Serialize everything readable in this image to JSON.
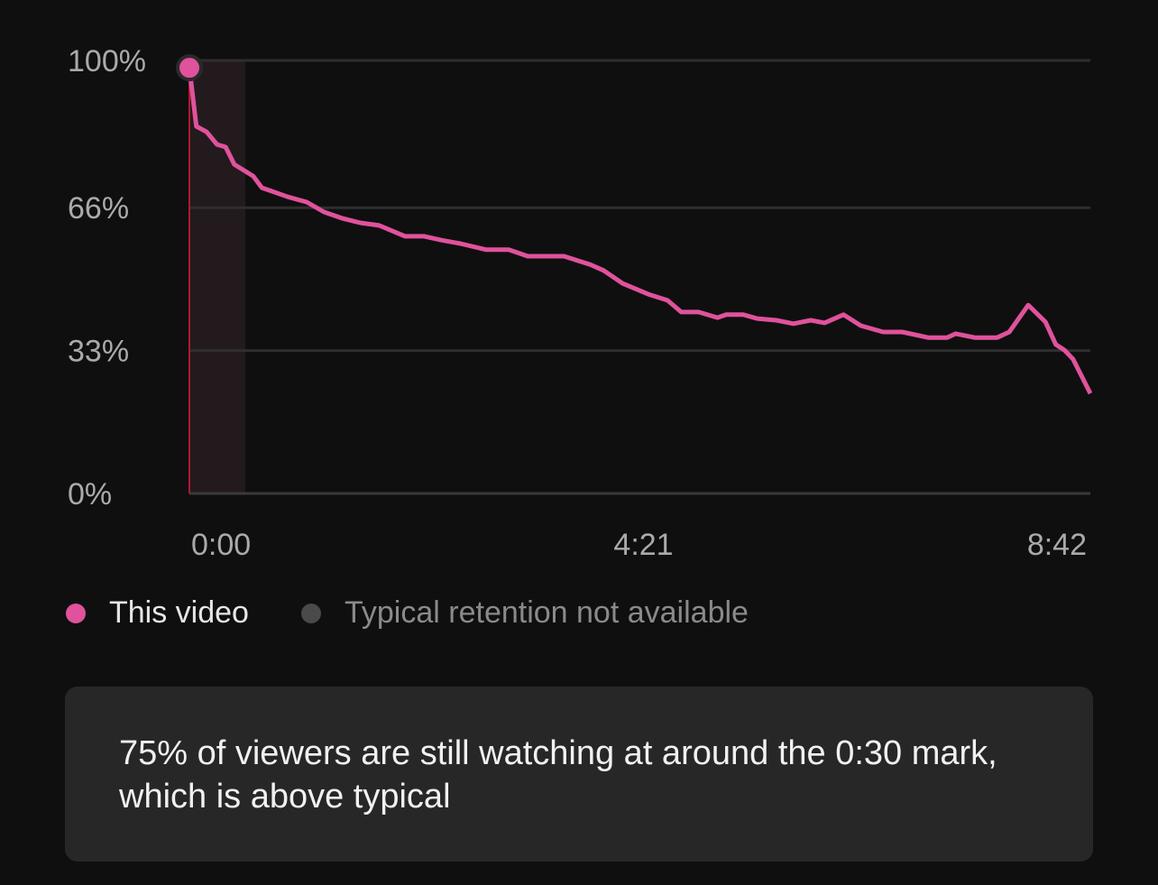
{
  "chart_data": {
    "type": "line",
    "x": [
      0,
      4,
      10,
      16,
      21,
      26,
      37,
      42,
      57,
      68,
      78,
      89,
      99,
      110,
      125,
      136,
      146,
      157,
      172,
      185,
      196,
      217,
      232,
      240,
      251,
      266,
      277,
      285,
      295,
      306,
      311,
      321,
      329,
      340,
      350,
      360,
      368,
      379,
      389,
      402,
      413,
      428,
      439,
      444,
      455,
      468,
      475,
      486,
      496,
      502,
      507,
      512,
      522
    ],
    "series": [
      {
        "name": "This video",
        "color": "#e0529c",
        "values": [
          98.3,
          84.8,
          83.5,
          80.6,
          80,
          76,
          73.3,
          70.6,
          68.5,
          67.3,
          65,
          63.5,
          62.5,
          61.9,
          59.4,
          59.4,
          58.5,
          57.7,
          56.3,
          56.3,
          54.8,
          54.8,
          52.9,
          51.5,
          48.5,
          46,
          44.6,
          41.9,
          41.9,
          40.6,
          41.3,
          41.3,
          40.4,
          40,
          39.2,
          40,
          39.4,
          41.3,
          38.75,
          37.3,
          37.3,
          36,
          36,
          36.9,
          36,
          36,
          37.3,
          43.5,
          39.6,
          34.4,
          33.1,
          31,
          23.1
        ]
      }
    ],
    "legend_unavailable": {
      "name": "Typical retention not available",
      "color": "#4a4a4a"
    },
    "xlim": [
      0,
      522
    ],
    "xticks": [
      {
        "value": 0,
        "label": "0:00"
      },
      {
        "value": 261,
        "label": "4:21"
      },
      {
        "value": 522,
        "label": "8:42"
      }
    ],
    "ylim": [
      0,
      100
    ],
    "yticks": [
      {
        "value": 0,
        "label": "0%"
      },
      {
        "value": 33,
        "label": "33%"
      },
      {
        "value": 66,
        "label": "66%"
      },
      {
        "value": 100,
        "label": "100%"
      }
    ],
    "grid": true,
    "insight": "75% of viewers are still watching at around the 0:30 mark, which is above typical"
  }
}
